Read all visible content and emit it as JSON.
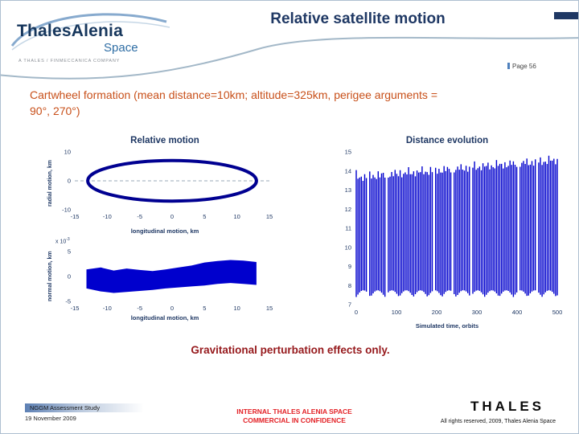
{
  "colors": {
    "navy": "#1f3864",
    "logo_navy": "#16365c",
    "logo_blue": "#2e6da4",
    "orange": "#c8501a",
    "maroon": "#96191c",
    "red": "#e32227",
    "chart_blue": "#0000cd",
    "ellipse_blue": "#000091",
    "swoosh": "#a3b8c8"
  },
  "slide": {
    "title": "Relative satellite motion",
    "page_label": "Page 56",
    "body_line1": "Cartwheel formation (mean distance=10km; altitude=325km, perigee arguments =",
    "body_line2": "90°, 270°)",
    "caption": "Gravitational perturbation effects only."
  },
  "logo": {
    "brand_top": "ThalesAlenia",
    "brand_bottom": "Space",
    "tagline": "A Thales / Finmeccanica Company"
  },
  "footer": {
    "study": "NGGM Assessment Study",
    "date": "19 November 2009",
    "confidential_line1": "INTERNAL THALES ALENIA SPACE",
    "confidential_line2": "COMMERCIAL IN CONFIDENCE",
    "brand": "THALES",
    "rights": "All rights reserved, 2009, Thales Alenia Space"
  },
  "chart_data": [
    {
      "type": "line",
      "title": "Relative motion",
      "xlabel": "longitudinal motion, km",
      "ylabel": "radial motion, km",
      "xlim": [
        -15,
        15
      ],
      "ylim": [
        -10,
        10
      ],
      "x_ticks": [
        -15,
        -10,
        -5,
        0,
        5,
        10,
        15
      ],
      "y_ticks": [
        10,
        0,
        -10
      ],
      "zero_line_dashed": true,
      "ellipse": {
        "cx": 0,
        "cy": 0,
        "rx": 13,
        "ry": 7
      }
    },
    {
      "type": "area",
      "title": "",
      "xlabel": "longitudinal motion, km",
      "ylabel": "normal motion, km",
      "scale_prefix": "x 10",
      "scale_exp": "-3",
      "xlim": [
        -15,
        15
      ],
      "ylim": [
        -5,
        5
      ],
      "x_ticks": [
        -15,
        -10,
        -5,
        0,
        5,
        10,
        15
      ],
      "y_ticks": [
        5,
        0,
        -5
      ],
      "band": {
        "upper": [
          [
            -13.2,
            1.4
          ],
          [
            -11,
            1.8
          ],
          [
            -9,
            1.2
          ],
          [
            -7,
            1.6
          ],
          [
            -5,
            1.3
          ],
          [
            -3,
            1.1
          ],
          [
            -1,
            1.4
          ],
          [
            1,
            1.8
          ],
          [
            3,
            2.2
          ],
          [
            5,
            2.8
          ],
          [
            7,
            3.1
          ],
          [
            9,
            3.3
          ],
          [
            11,
            3.2
          ],
          [
            13,
            2.9
          ]
        ],
        "lower": [
          [
            -13.2,
            -2.4
          ],
          [
            -11,
            -3.0
          ],
          [
            -9,
            -3.3
          ],
          [
            -7,
            -3.1
          ],
          [
            -5,
            -2.9
          ],
          [
            -3,
            -2.7
          ],
          [
            -1,
            -2.4
          ],
          [
            1,
            -2.2
          ],
          [
            3,
            -2.0
          ],
          [
            5,
            -1.8
          ],
          [
            7,
            -1.5
          ],
          [
            9,
            -1.3
          ],
          [
            11,
            -1.5
          ],
          [
            13,
            -1.7
          ]
        ]
      }
    },
    {
      "type": "line",
      "title": "Distance evolution",
      "xlabel": "Simulated time, orbits",
      "ylabel": "",
      "xlim": [
        0,
        500
      ],
      "ylim": [
        7,
        15
      ],
      "x_ticks": [
        0,
        100,
        200,
        300,
        400,
        500
      ],
      "y_ticks": [
        15,
        14,
        13,
        12,
        11,
        10,
        9,
        8,
        7
      ],
      "lines": {
        "count": 120,
        "bottom": 7.4,
        "bottom_jitter": 0.35,
        "top_start": 14.05,
        "top_end": 14.95,
        "top_jitter": 0.6
      }
    }
  ]
}
